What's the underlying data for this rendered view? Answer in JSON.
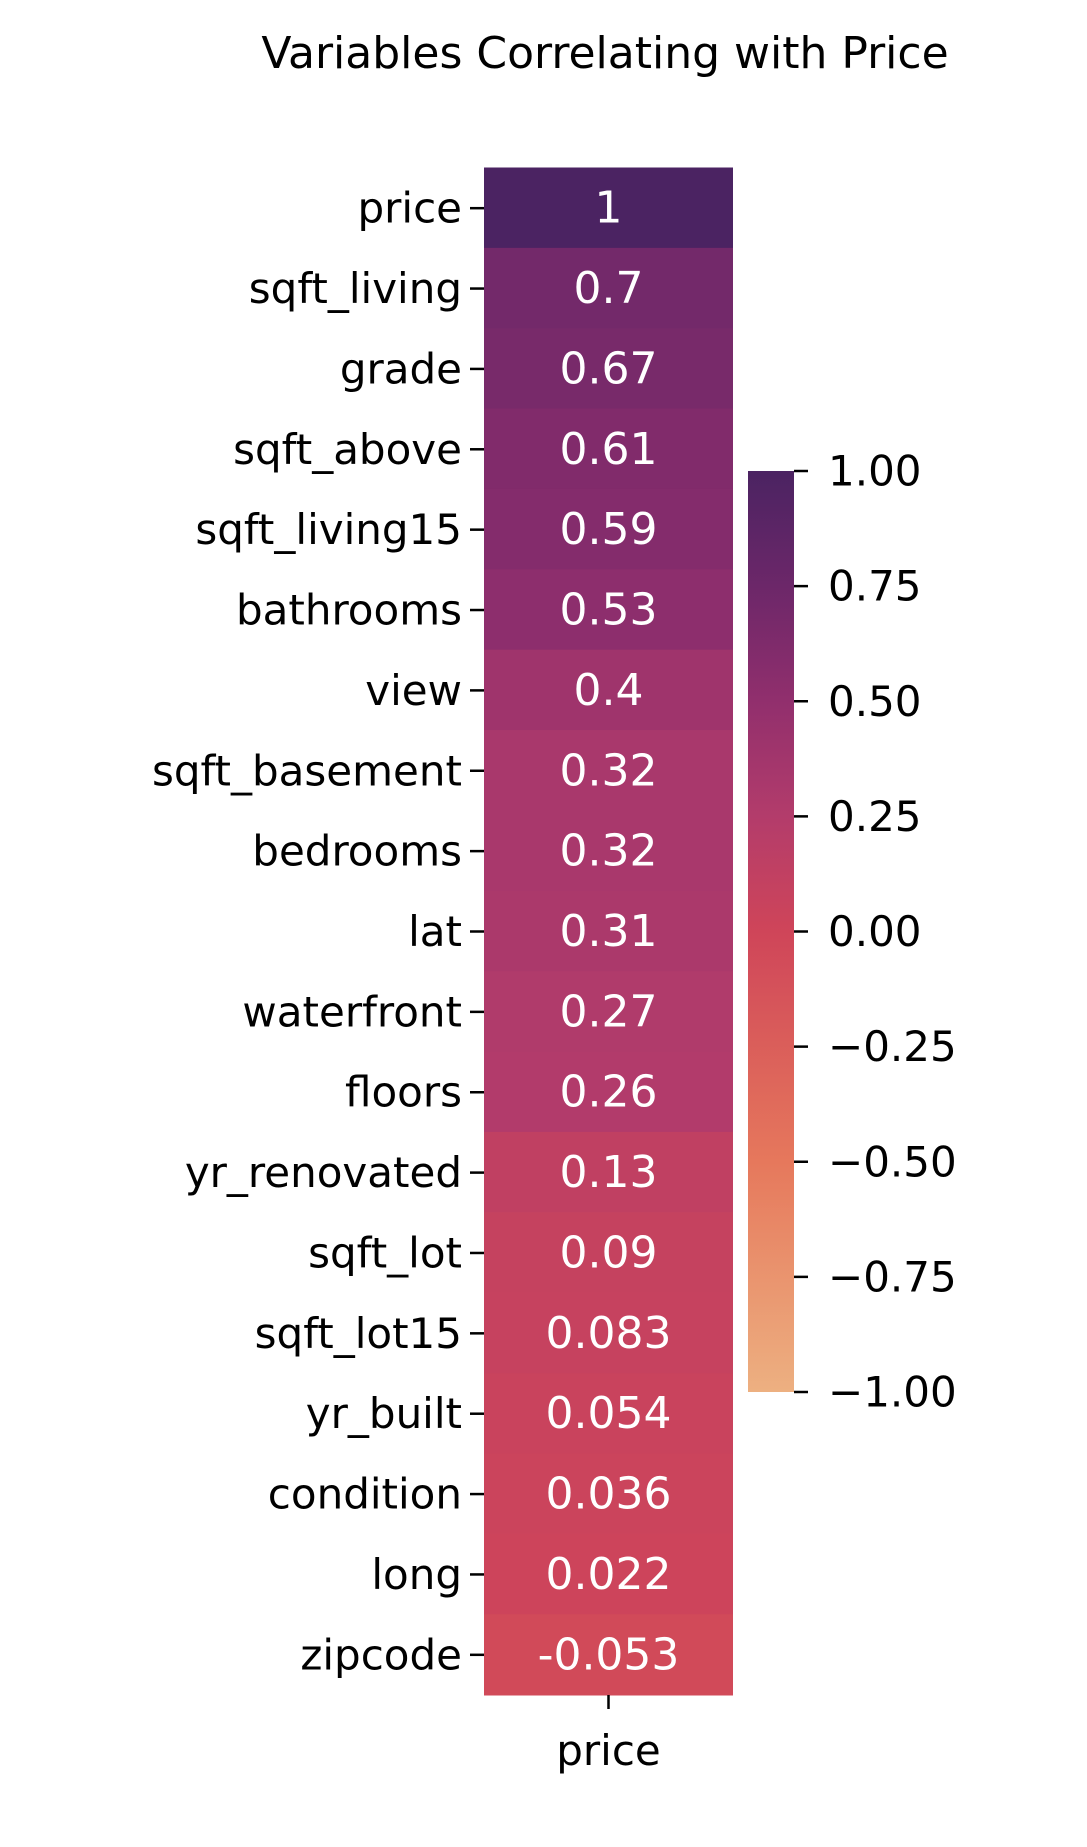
{
  "chart_data": {
    "type": "heatmap",
    "title": "Variables Correlating with Price",
    "columns": [
      "price"
    ],
    "rows": [
      "price",
      "sqft_living",
      "grade",
      "sqft_above",
      "sqft_living15",
      "bathrooms",
      "view",
      "sqft_basement",
      "bedrooms",
      "lat",
      "waterfront",
      "floors",
      "yr_renovated",
      "sqft_lot",
      "sqft_lot15",
      "yr_built",
      "condition",
      "long",
      "zipcode"
    ],
    "values": [
      1,
      0.7,
      0.67,
      0.61,
      0.59,
      0.53,
      0.4,
      0.32,
      0.32,
      0.31,
      0.27,
      0.26,
      0.13,
      0.09,
      0.083,
      0.054,
      0.036,
      0.022,
      -0.053
    ],
    "value_labels": [
      "1",
      "0.7",
      "0.67",
      "0.61",
      "0.59",
      "0.53",
      "0.4",
      "0.32",
      "0.32",
      "0.31",
      "0.27",
      "0.26",
      "0.13",
      "0.09",
      "0.083",
      "0.054",
      "0.036",
      "0.022",
      "-0.053"
    ],
    "colorbar": {
      "vmin": -1,
      "vmax": 1,
      "ticks": [
        1,
        0.75,
        0.5,
        0.25,
        0,
        -0.25,
        -0.5,
        -0.75,
        -1
      ],
      "tick_labels": [
        "1.00",
        "0.75",
        "0.50",
        "0.25",
        "0.00",
        "−0.25",
        "−0.50",
        "−0.75",
        "−1.00"
      ],
      "colormap": "flare",
      "color_stops": [
        [
          -1.0,
          "#edb081"
        ],
        [
          -0.5,
          "#e6785c"
        ],
        [
          0.0,
          "#cf4559"
        ],
        [
          0.25,
          "#b33c6b"
        ],
        [
          0.5,
          "#912f6d"
        ],
        [
          0.75,
          "#6c2769"
        ],
        [
          1.0,
          "#4b2362"
        ]
      ]
    },
    "annotation_color": "#ffffff",
    "text_color": "#000000"
  }
}
